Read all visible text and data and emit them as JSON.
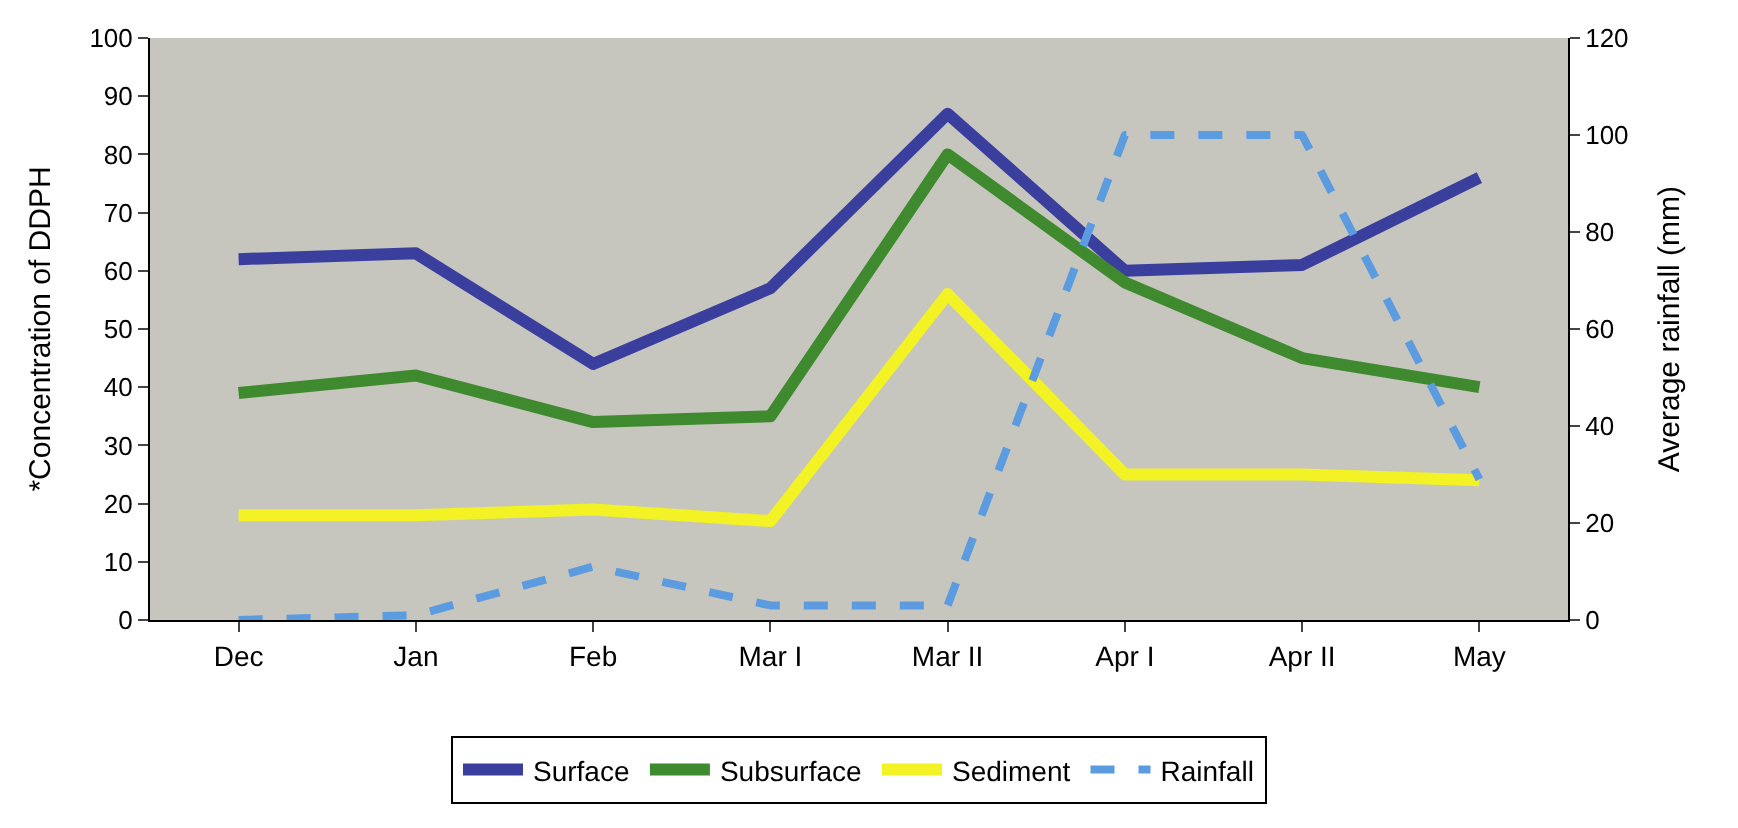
{
  "chart_data": {
    "type": "line",
    "ylabel": "*Concentration of DDPH",
    "y2label": "Average rainfall (mm)",
    "categories": [
      "Dec",
      "Jan",
      "Feb",
      "Mar I",
      "Mar II",
      "Apr I",
      "Apr II",
      "May"
    ],
    "series": [
      {
        "name": "Surface",
        "color": "#3a3f9e",
        "values": [
          62,
          63,
          44,
          57,
          87,
          60,
          61,
          76
        ]
      },
      {
        "name": "Subsurface",
        "color": "#3f8a2e",
        "values": [
          39,
          42,
          34,
          35,
          80,
          58,
          45,
          40
        ]
      },
      {
        "name": "Sediment",
        "color": "#f2f224",
        "values": [
          18,
          18,
          19,
          17,
          56,
          25,
          25,
          24
        ]
      },
      {
        "name": "Rainfall",
        "color": "#5b9be0",
        "values": [
          0,
          1,
          11,
          3,
          3,
          100,
          100,
          29
        ],
        "axis": "y2",
        "line_style": "dashed"
      }
    ],
    "ylim": [
      0,
      100
    ],
    "yticks": [
      0,
      10,
      20,
      30,
      40,
      50,
      60,
      70,
      80,
      90,
      100
    ],
    "y2lim": [
      0,
      120
    ],
    "y2ticks": [
      0,
      20,
      40,
      60,
      80,
      100,
      120
    ],
    "grid": false,
    "legend": "bottom"
  }
}
